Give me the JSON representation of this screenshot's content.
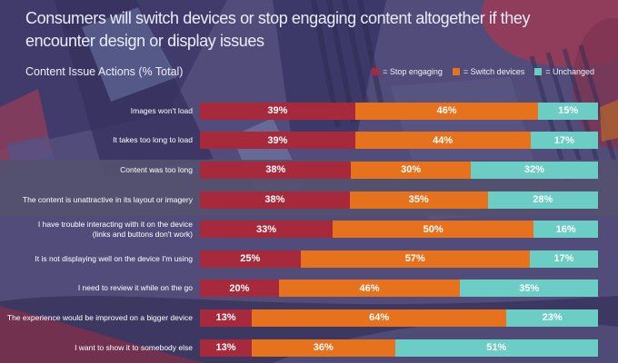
{
  "header": {
    "title": "Consumers will switch devices or stop engaging content altogether if they\nencounter design or display issues",
    "subtitle": "Content Issue Actions (% Total)"
  },
  "legend": [
    {
      "label": "= Stop engaging",
      "color": "#A62A3C"
    },
    {
      "label": "= Switch devices",
      "color": "#E6721E"
    },
    {
      "label": "= Unchanged",
      "color": "#6BCDC4"
    }
  ],
  "chart_data": {
    "type": "bar",
    "orientation": "horizontal-stacked",
    "unit": "%",
    "title": "Content Issue Actions (% Total)",
    "legend_position": "top-right",
    "axis": "none (data labels inside segments)",
    "categories": [
      "Images won't load",
      "It takes too long to load",
      "Content was too long",
      "The content is unattractive in its layout or imagery",
      "I have trouble interacting with it on the device\n(links and buttons don't work)",
      "It is not displaying well on the device I'm using",
      "I need to review it while on the go",
      "The experience would be improved on a bigger device",
      "I want to show it to somebody else"
    ],
    "series": [
      {
        "name": "Stop engaging",
        "color": "#A62A3C",
        "values": [
          39,
          39,
          38,
          38,
          33,
          25,
          20,
          13,
          13
        ]
      },
      {
        "name": "Switch devices",
        "color": "#E6721E",
        "values": [
          46,
          44,
          30,
          35,
          50,
          57,
          46,
          64,
          36
        ]
      },
      {
        "name": "Unchanged",
        "color": "#6BCDC4",
        "values": [
          15,
          17,
          32,
          28,
          16,
          17,
          35,
          23,
          51
        ]
      }
    ]
  },
  "colors": {
    "background_base": "#544E7D",
    "background_band": "#57526E",
    "background_bottom": "#39345C",
    "title_text": "#E9ECFA",
    "label_text": "#FFFFFF"
  }
}
